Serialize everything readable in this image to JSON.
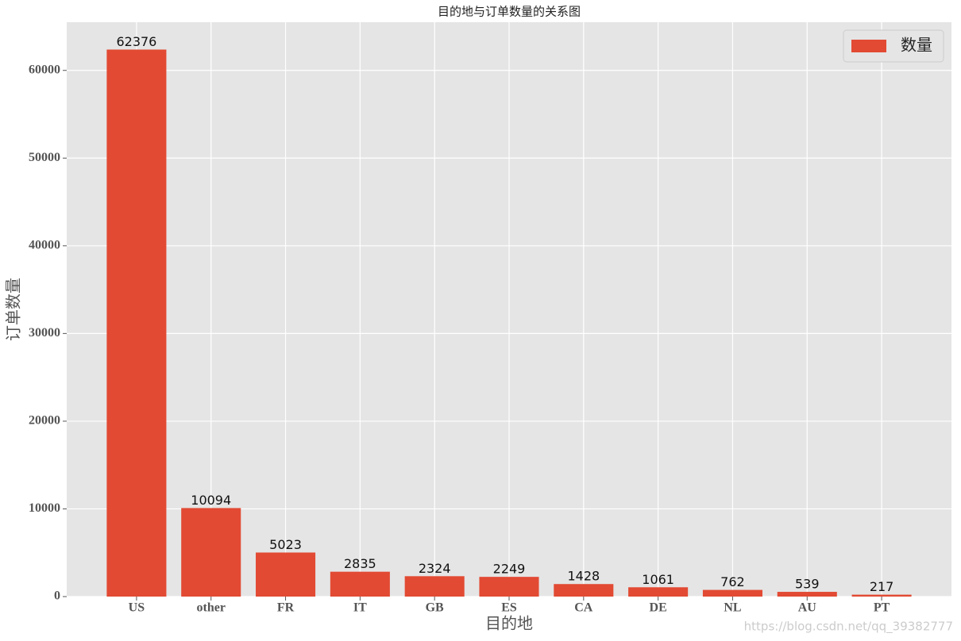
{
  "chart_data": {
    "type": "bar",
    "title": "目的地与订单数量的关系图",
    "x_label": "目的地",
    "y_label": "订单数量",
    "categories": [
      "US",
      "other",
      "FR",
      "IT",
      "GB",
      "ES",
      "CA",
      "DE",
      "NL",
      "AU",
      "PT"
    ],
    "series": [
      {
        "name": "数量",
        "color": "#e24a33",
        "values": [
          62376,
          10094,
          5023,
          2835,
          2324,
          2249,
          1428,
          1061,
          762,
          539,
          217
        ]
      }
    ],
    "ylim": [
      0,
      65495
    ],
    "yticks": [
      0,
      10000,
      20000,
      30000,
      40000,
      50000,
      60000
    ],
    "grid": true,
    "legend": "upper right",
    "show_value_labels": true,
    "watermark": "https://blog.csdn.net/qq_39382777"
  }
}
